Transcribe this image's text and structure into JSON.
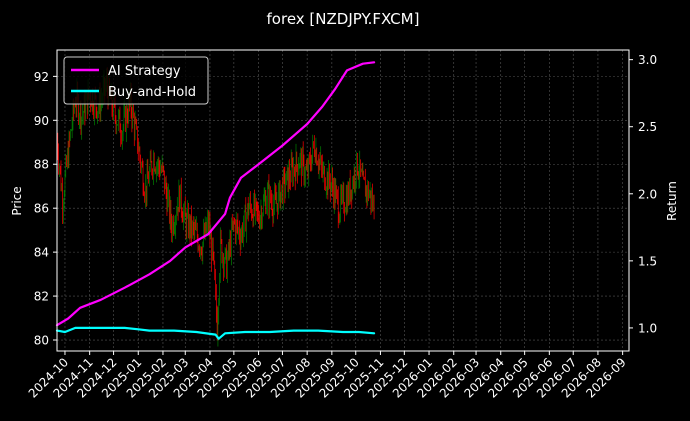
{
  "chart_data": {
    "title": "forex [NZDJPY.FXCM]",
    "type": "line",
    "grid": true,
    "legend_position": "top-left",
    "left_axis": {
      "label": "Price",
      "ylim": [
        79.5,
        93.2
      ],
      "ticks": [
        80,
        82,
        84,
        86,
        88,
        90,
        92
      ]
    },
    "right_axis": {
      "label": "Return",
      "ylim": [
        0.828,
        3.072
      ],
      "ticks": [
        "1.0",
        "1.5",
        "2.0",
        "2.5",
        "3.0"
      ]
    },
    "x_axis": {
      "range": [
        "2024-09-21",
        "2026-09-09"
      ],
      "ticks": [
        "2024-10",
        "2024-11",
        "2024-12",
        "2025-01",
        "2025-02",
        "2025-03",
        "2025-04",
        "2025-05",
        "2025-06",
        "2025-07",
        "2025-08",
        "2025-09",
        "2025-10",
        "2025-11",
        "2025-12",
        "2026-01",
        "2026-02",
        "2026-03",
        "2026-04",
        "2026-05",
        "2026-06",
        "2026-07",
        "2026-08",
        "2026-09"
      ]
    },
    "candles": {
      "axis": "left",
      "up_color": "#008000",
      "down_color": "#ff0000",
      "price_path": [
        [
          "2024-09-21",
          89.2
        ],
        [
          "2024-09-28",
          86.4
        ],
        [
          "2024-10-05",
          88.5
        ],
        [
          "2024-10-14",
          91.0
        ],
        [
          "2024-10-22",
          90.2
        ],
        [
          "2024-11-01",
          91.2
        ],
        [
          "2024-11-12",
          90.6
        ],
        [
          "2024-11-22",
          91.6
        ],
        [
          "2024-12-01",
          90.4
        ],
        [
          "2024-12-12",
          89.6
        ],
        [
          "2024-12-22",
          90.8
        ],
        [
          "2025-01-01",
          88.8
        ],
        [
          "2025-01-10",
          86.8
        ],
        [
          "2025-01-20",
          88.3
        ],
        [
          "2025-02-01",
          87.6
        ],
        [
          "2025-02-12",
          85.2
        ],
        [
          "2025-02-22",
          86.6
        ],
        [
          "2025-03-01",
          85.4
        ],
        [
          "2025-03-12",
          84.9
        ],
        [
          "2025-03-22",
          84.3
        ],
        [
          "2025-03-30",
          85.3
        ],
        [
          "2025-04-05",
          83.6
        ],
        [
          "2025-04-10",
          80.6
        ],
        [
          "2025-04-14",
          84.3
        ],
        [
          "2025-04-22",
          83.4
        ],
        [
          "2025-05-01",
          85.3
        ],
        [
          "2025-05-10",
          84.8
        ],
        [
          "2025-05-20",
          86.1
        ],
        [
          "2025-06-01",
          85.6
        ],
        [
          "2025-06-12",
          86.6
        ],
        [
          "2025-06-22",
          86.1
        ],
        [
          "2025-07-01",
          86.9
        ],
        [
          "2025-07-12",
          87.6
        ],
        [
          "2025-07-22",
          88.2
        ],
        [
          "2025-08-01",
          87.5
        ],
        [
          "2025-08-10",
          88.9
        ],
        [
          "2025-08-20",
          87.6
        ],
        [
          "2025-09-01",
          87.1
        ],
        [
          "2025-09-10",
          86.0
        ],
        [
          "2025-09-22",
          86.6
        ],
        [
          "2025-10-03",
          88.0
        ],
        [
          "2025-10-10",
          87.0
        ],
        [
          "2025-10-18",
          86.7
        ],
        [
          "2025-10-24",
          86.0
        ]
      ]
    },
    "series": [
      {
        "name": "AI Strategy",
        "axis": "right",
        "color": "#ff00ff",
        "points": [
          [
            "2024-09-21",
            1.02
          ],
          [
            "2024-10-05",
            1.07
          ],
          [
            "2024-10-20",
            1.15
          ],
          [
            "2024-11-15",
            1.21
          ],
          [
            "2024-12-15",
            1.3
          ],
          [
            "2025-01-15",
            1.4
          ],
          [
            "2025-02-10",
            1.5
          ],
          [
            "2025-03-01",
            1.6
          ],
          [
            "2025-03-30",
            1.7
          ],
          [
            "2025-04-20",
            1.85
          ],
          [
            "2025-04-26",
            1.97
          ],
          [
            "2025-05-10",
            2.12
          ],
          [
            "2025-06-01",
            2.22
          ],
          [
            "2025-07-01",
            2.36
          ],
          [
            "2025-08-01",
            2.52
          ],
          [
            "2025-08-20",
            2.65
          ],
          [
            "2025-09-05",
            2.78
          ],
          [
            "2025-09-20",
            2.92
          ],
          [
            "2025-10-10",
            2.97
          ],
          [
            "2025-10-24",
            2.98
          ]
        ]
      },
      {
        "name": "Buy-and-Hold",
        "axis": "right",
        "color": "#00ffff",
        "points": [
          [
            "2024-09-21",
            0.98
          ],
          [
            "2024-10-01",
            0.97
          ],
          [
            "2024-10-14",
            1.0
          ],
          [
            "2024-11-15",
            1.0
          ],
          [
            "2024-12-15",
            1.0
          ],
          [
            "2025-01-01",
            0.99
          ],
          [
            "2025-01-15",
            0.98
          ],
          [
            "2025-02-15",
            0.98
          ],
          [
            "2025-03-15",
            0.97
          ],
          [
            "2025-04-08",
            0.95
          ],
          [
            "2025-04-12",
            0.92
          ],
          [
            "2025-04-20",
            0.96
          ],
          [
            "2025-05-15",
            0.97
          ],
          [
            "2025-06-15",
            0.97
          ],
          [
            "2025-07-15",
            0.98
          ],
          [
            "2025-08-15",
            0.98
          ],
          [
            "2025-09-15",
            0.97
          ],
          [
            "2025-10-05",
            0.97
          ],
          [
            "2025-10-24",
            0.96
          ]
        ]
      }
    ]
  }
}
